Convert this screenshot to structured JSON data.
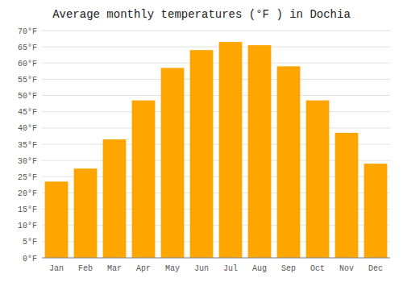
{
  "chart_data": {
    "type": "bar",
    "title": "Average monthly temperatures (°F ) in Dochia",
    "categories": [
      "Jan",
      "Feb",
      "Mar",
      "Apr",
      "May",
      "Jun",
      "Jul",
      "Aug",
      "Sep",
      "Oct",
      "Nov",
      "Dec"
    ],
    "values": [
      23.5,
      27.5,
      36.5,
      48.5,
      58.5,
      64.0,
      66.5,
      65.5,
      59.0,
      48.5,
      38.5,
      29.0
    ],
    "color": "#FFA500",
    "ylim": [
      0,
      70
    ],
    "yticks": [
      {
        "value": 0,
        "label": "0°F"
      },
      {
        "value": 5,
        "label": "5°F"
      },
      {
        "value": 10,
        "label": "10°F"
      },
      {
        "value": 15,
        "label": "15°F"
      },
      {
        "value": 20,
        "label": "20°F"
      },
      {
        "value": 25,
        "label": "25°F"
      },
      {
        "value": 30,
        "label": "30°F"
      },
      {
        "value": 35,
        "label": "35°F"
      },
      {
        "value": 40,
        "label": "40°F"
      },
      {
        "value": 45,
        "label": "45°F"
      },
      {
        "value": 50,
        "label": "50°F"
      },
      {
        "value": 55,
        "label": "55°F"
      },
      {
        "value": 60,
        "label": "60°F"
      },
      {
        "value": 65,
        "label": "65°F"
      },
      {
        "value": 70,
        "label": "70°F"
      }
    ],
    "grid": true
  }
}
